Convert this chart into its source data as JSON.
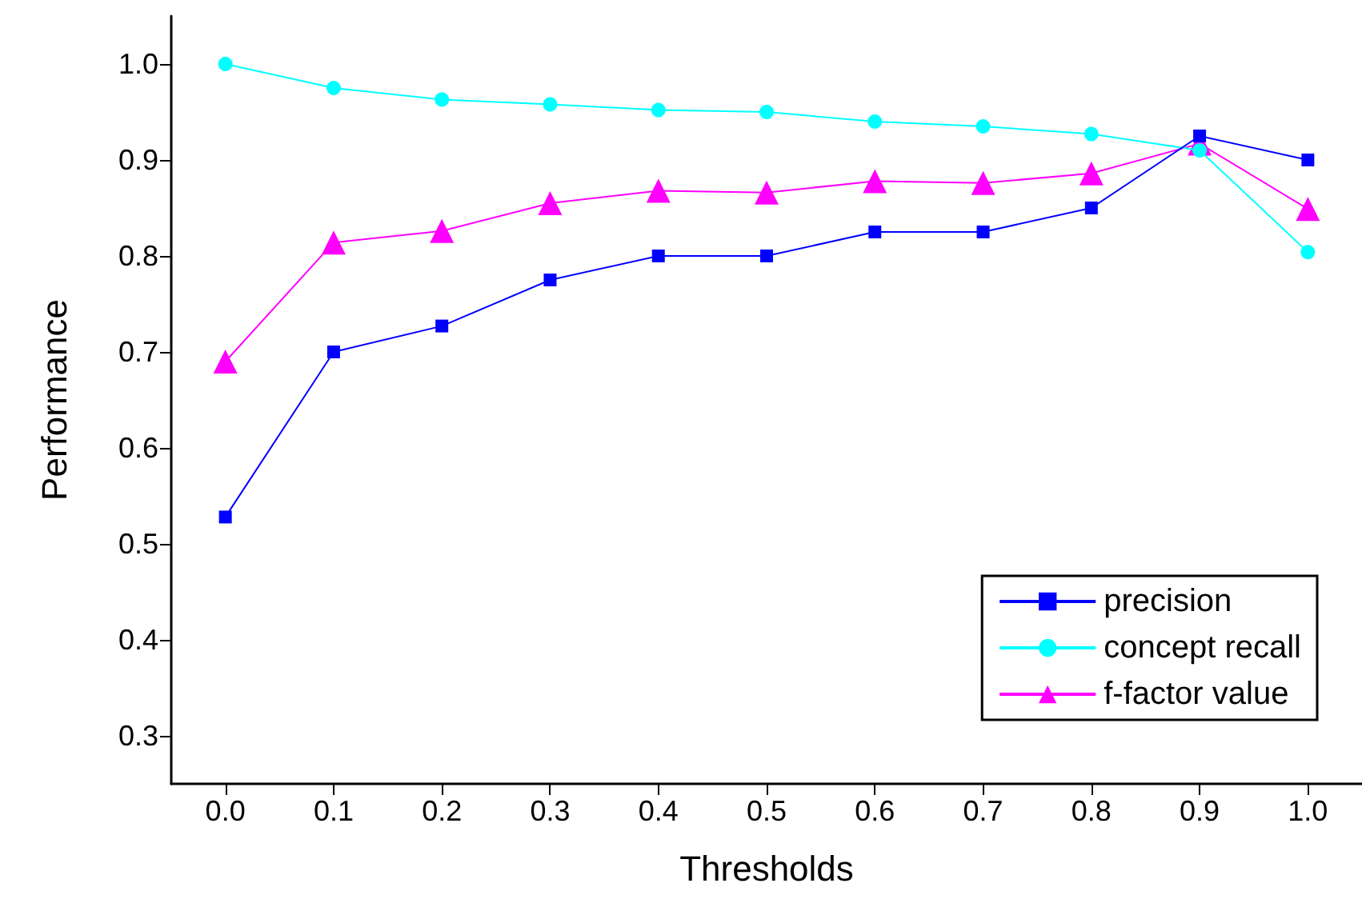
{
  "chart_data": {
    "type": "line",
    "xlabel": "Thresholds",
    "ylabel": "Performance",
    "x": [
      0,
      0.1,
      0.2,
      0.3,
      0.4,
      0.5,
      0.6,
      0.7,
      0.8,
      0.9,
      1
    ],
    "series": [
      {
        "name": "precision",
        "color": "#0000ff",
        "marker": "square",
        "values": [
          0.528,
          0.7,
          0.727,
          0.775,
          0.8,
          0.8,
          0.825,
          0.825,
          0.85,
          0.925,
          0.9
        ]
      },
      {
        "name": "concept recall",
        "color": "#00ffff",
        "marker": "circle",
        "values": [
          1.0,
          0.975,
          0.963,
          0.958,
          0.952,
          0.95,
          0.94,
          0.935,
          0.927,
          0.91,
          0.804
        ]
      },
      {
        "name": "f-factor value",
        "color": "#ff00ff",
        "marker": "triangle",
        "values": [
          0.69,
          0.814,
          0.826,
          0.855,
          0.868,
          0.866,
          0.878,
          0.876,
          0.886,
          0.917,
          0.849
        ]
      }
    ],
    "xlim": [
      -0.05,
      1.05
    ],
    "xticks": [
      {
        "value": 0,
        "label": "0.0"
      },
      0.1,
      0.2,
      0.3,
      0.4,
      0.5,
      0.6,
      0.7,
      0.8,
      0.9,
      {
        "value": 1,
        "label": "1.0"
      }
    ],
    "ylim": [
      0.25,
      1.05
    ],
    "yticks": [
      0.3,
      0.4,
      0.5,
      0.6,
      0.7,
      0.8,
      0.9,
      {
        "value": 1,
        "label": "1.0"
      }
    ],
    "grid": false,
    "legend": "bottom right",
    "line_style": "solid"
  }
}
